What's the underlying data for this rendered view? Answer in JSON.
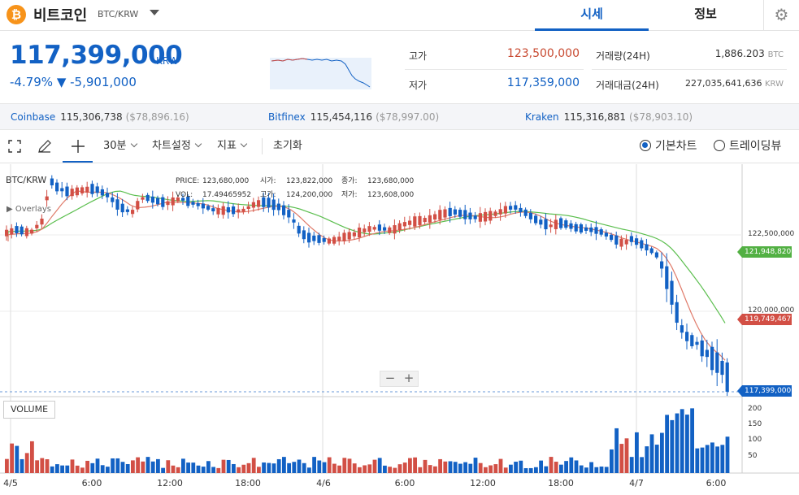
{
  "header": {
    "coin_symbol": "₿",
    "coin_name": "비트코인",
    "pair": "BTC/KRW",
    "tabs": [
      "시세",
      "정보"
    ],
    "settings_icon": "gear-icon"
  },
  "summary": {
    "price": "117,399,000",
    "unit": "KRW",
    "change": "-4.79% ▼ -5,901,000",
    "high_label": "고가",
    "high_value": "123,500,000",
    "low_label": "저가",
    "low_value": "117,359,000",
    "volume_label": "거래량(24H)",
    "volume_value": "1,886.203",
    "volume_unit": "BTC",
    "amount_label": "거래대금(24H)",
    "amount_value": "227,035,641,636",
    "amount_unit": "KRW"
  },
  "exchanges": [
    {
      "name": "Coinbase",
      "price": "115,306,738",
      "usd": "($78,896.16)"
    },
    {
      "name": "Bitfinex",
      "price": "115,454,116",
      "usd": "($78,997.00)"
    },
    {
      "name": "Kraken",
      "price": "115,316,881",
      "usd": "($78,903.10)"
    }
  ],
  "toolbar": {
    "interval": "30분",
    "chart_settings": "차트설정",
    "indicators": "지표",
    "reset": "초기화",
    "basic_chart": "기본차트",
    "tradingview": "트레이딩뷰"
  },
  "chart": {
    "symbol": "BTC/KRW",
    "overlays": "▶ Overlays",
    "info": {
      "price_label": "PRICE:",
      "price": "123,680,000",
      "open_label": "시가:",
      "open": "123,822,000",
      "close_label": "종가:",
      "close": "123,680,000",
      "vol_label": "VOL:",
      "vol": "17.49465952",
      "high_label": "고가:",
      "high": "124,200,000",
      "low_label": "저가:",
      "low": "123,608,000"
    },
    "volume_label": "VOLUME",
    "zoom_out": "−",
    "zoom_in": "+",
    "price_axis": [
      "122,500,000",
      "120,000,000"
    ],
    "volume_axis": [
      "200",
      "150",
      "100",
      "50"
    ],
    "tags": {
      "ma_green": "121,948,820",
      "ma_red": "119,749,467",
      "last": "117,399,000"
    },
    "time_labels": [
      "4/5",
      "6:00",
      "12:00",
      "18:00",
      "4/6",
      "6:00",
      "12:00",
      "18:00",
      "4/7",
      "6:00"
    ],
    "colors": {
      "up": "#d24f45",
      "down": "#1261c4",
      "ma_short": "#e07b6a",
      "ma_long": "#5cbf4f"
    }
  }
}
